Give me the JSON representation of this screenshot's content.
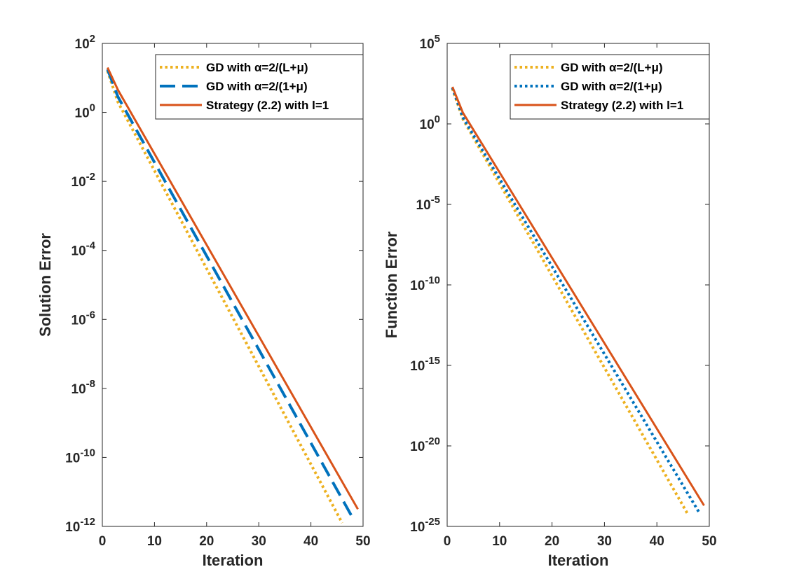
{
  "chart_data": [
    {
      "type": "line",
      "scale": "log-y",
      "xlabel": "Iteration",
      "ylabel": "Solution Error",
      "xlim": [
        0,
        50
      ],
      "ylim_exp": [
        -12,
        2
      ],
      "xticks": [
        0,
        10,
        20,
        30,
        40,
        50
      ],
      "yticks_exp": [
        -12,
        -10,
        -8,
        -6,
        -4,
        -2,
        0,
        2
      ],
      "legend": "top-right",
      "series": [
        {
          "name": "GD with α=2/(L+μ)",
          "style": "dotted",
          "color": "#EDB120",
          "x": [
            1,
            3,
            46
          ],
          "y_exp": [
            1.2,
            0.3,
            -11.9
          ]
        },
        {
          "name": "GD with α=2/(1+μ)",
          "style": "dashed",
          "color": "#0072BD",
          "x": [
            1,
            3,
            48
          ],
          "y_exp": [
            1.25,
            0.45,
            -11.75
          ]
        },
        {
          "name": "Strategy (2.2) with l=1",
          "style": "solid",
          "color": "#D95319",
          "x": [
            1,
            3,
            49
          ],
          "y_exp": [
            1.3,
            0.65,
            -11.5
          ]
        }
      ]
    },
    {
      "type": "line",
      "scale": "log-y",
      "xlabel": "Iteration",
      "ylabel": "Function Error",
      "xlim": [
        0,
        50
      ],
      "ylim_exp": [
        -25,
        5
      ],
      "xticks": [
        0,
        10,
        20,
        30,
        40,
        50
      ],
      "yticks_exp": [
        -25,
        -20,
        -15,
        -10,
        -5,
        0,
        5
      ],
      "legend": "top-right",
      "series": [
        {
          "name": "GD with α=2/(L+μ)",
          "style": "dotted",
          "color": "#EDB120",
          "x": [
            1,
            3,
            46
          ],
          "y_exp": [
            2.2,
            0.3,
            -24.3
          ]
        },
        {
          "name": "GD with α=2/(1+μ)",
          "style": "dotted",
          "color": "#0072BD",
          "x": [
            1,
            3,
            48
          ],
          "y_exp": [
            2.25,
            0.4,
            -24.1
          ]
        },
        {
          "name": "Strategy (2.2) with l=1",
          "style": "solid",
          "color": "#D95319",
          "x": [
            1,
            3,
            49
          ],
          "y_exp": [
            2.3,
            0.7,
            -23.7
          ]
        }
      ]
    }
  ]
}
